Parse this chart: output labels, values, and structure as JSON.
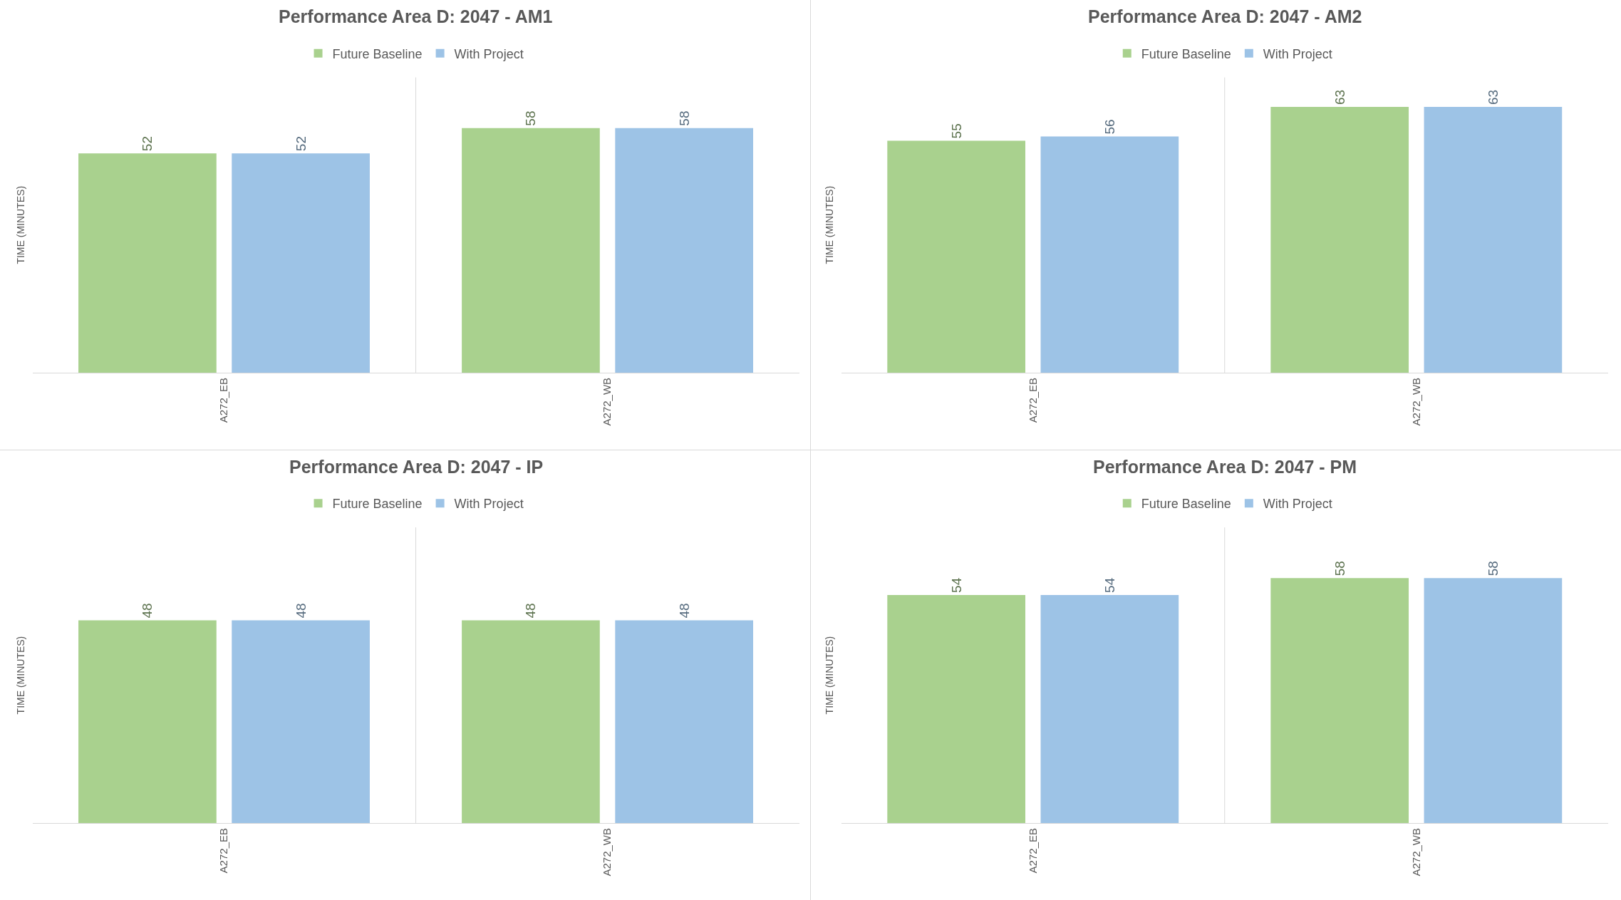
{
  "chart_data": [
    {
      "type": "bar",
      "title": "Performance Area D: 2047 - AM1",
      "ylabel": "TIME (MINUTES)",
      "categories": [
        "A272_EB",
        "A272_WB"
      ],
      "ylim": [
        0,
        70
      ],
      "tick_labels": "x",
      "data_labels": true,
      "legend": "top",
      "series": [
        {
          "name": "Future Baseline",
          "color": "#a9d18e",
          "values": [
            52,
            58
          ]
        },
        {
          "name": "With Project",
          "color": "#9dc3e6",
          "values": [
            52,
            58
          ]
        }
      ]
    },
    {
      "type": "bar",
      "title": "Performance Area D: 2047 - AM2",
      "ylabel": "TIME (MINUTES)",
      "categories": [
        "A272_EB",
        "A272_WB"
      ],
      "ylim": [
        0,
        70
      ],
      "tick_labels": "x",
      "data_labels": true,
      "legend": "top",
      "series": [
        {
          "name": "Future Baseline",
          "color": "#a9d18e",
          "values": [
            55,
            63
          ]
        },
        {
          "name": "With Project",
          "color": "#9dc3e6",
          "values": [
            56,
            63
          ]
        }
      ]
    },
    {
      "type": "bar",
      "title": "Performance Area D: 2047 - IP",
      "ylabel": "TIME (MINUTES)",
      "categories": [
        "A272_EB",
        "A272_WB"
      ],
      "ylim": [
        0,
        70
      ],
      "tick_labels": "x",
      "data_labels": true,
      "legend": "top",
      "series": [
        {
          "name": "Future Baseline",
          "color": "#a9d18e",
          "values": [
            48,
            48
          ]
        },
        {
          "name": "With Project",
          "color": "#9dc3e6",
          "values": [
            48,
            48
          ]
        }
      ]
    },
    {
      "type": "bar",
      "title": "Performance Area D: 2047 - PM",
      "ylabel": "TIME (MINUTES)",
      "categories": [
        "A272_EB",
        "A272_WB"
      ],
      "ylim": [
        0,
        70
      ],
      "tick_labels": "x",
      "data_labels": true,
      "legend": "top",
      "series": [
        {
          "name": "Future Baseline",
          "color": "#a9d18e",
          "values": [
            54,
            58
          ]
        },
        {
          "name": "With Project",
          "color": "#9dc3e6",
          "values": [
            54,
            58
          ]
        }
      ]
    }
  ]
}
